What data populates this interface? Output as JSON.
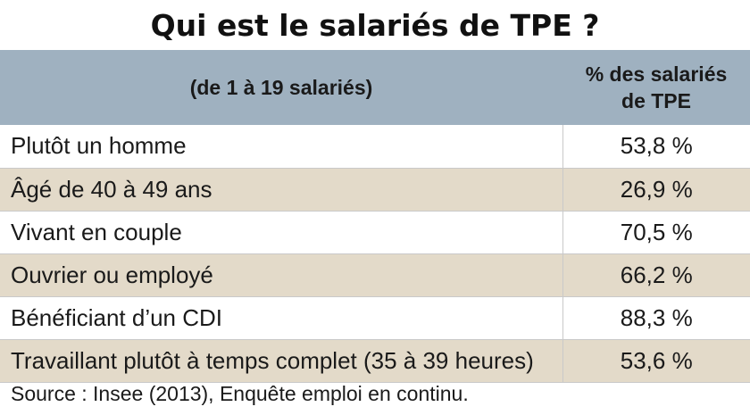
{
  "title": "Qui est le salariés de TPE ?",
  "table": {
    "header": {
      "label": "(de 1 à 19 salariés)",
      "value_line1": "% des salariés",
      "value_line2": "de TPE"
    },
    "rows": [
      {
        "label": "Plutôt un homme",
        "value": "53,8 %"
      },
      {
        "label": "Âgé de 40 à 49 ans",
        "value": "26,9 %"
      },
      {
        "label": "Vivant en couple",
        "value": "70,5 %"
      },
      {
        "label": "Ouvrier ou employé",
        "value": "66,2 %"
      },
      {
        "label": "Bénéficiant d’un CDI",
        "value": "88,3 %"
      },
      {
        "label": "Travaillant plutôt à temps complet (35 à 39 heures)",
        "value": "53,6 %"
      }
    ]
  },
  "source": "Source : Insee (2013), Enquête emploi en continu.",
  "colors": {
    "header_bg": "#9fb1c0",
    "stripe_bg": "#e3dac9",
    "text": "#1a1a1a"
  }
}
